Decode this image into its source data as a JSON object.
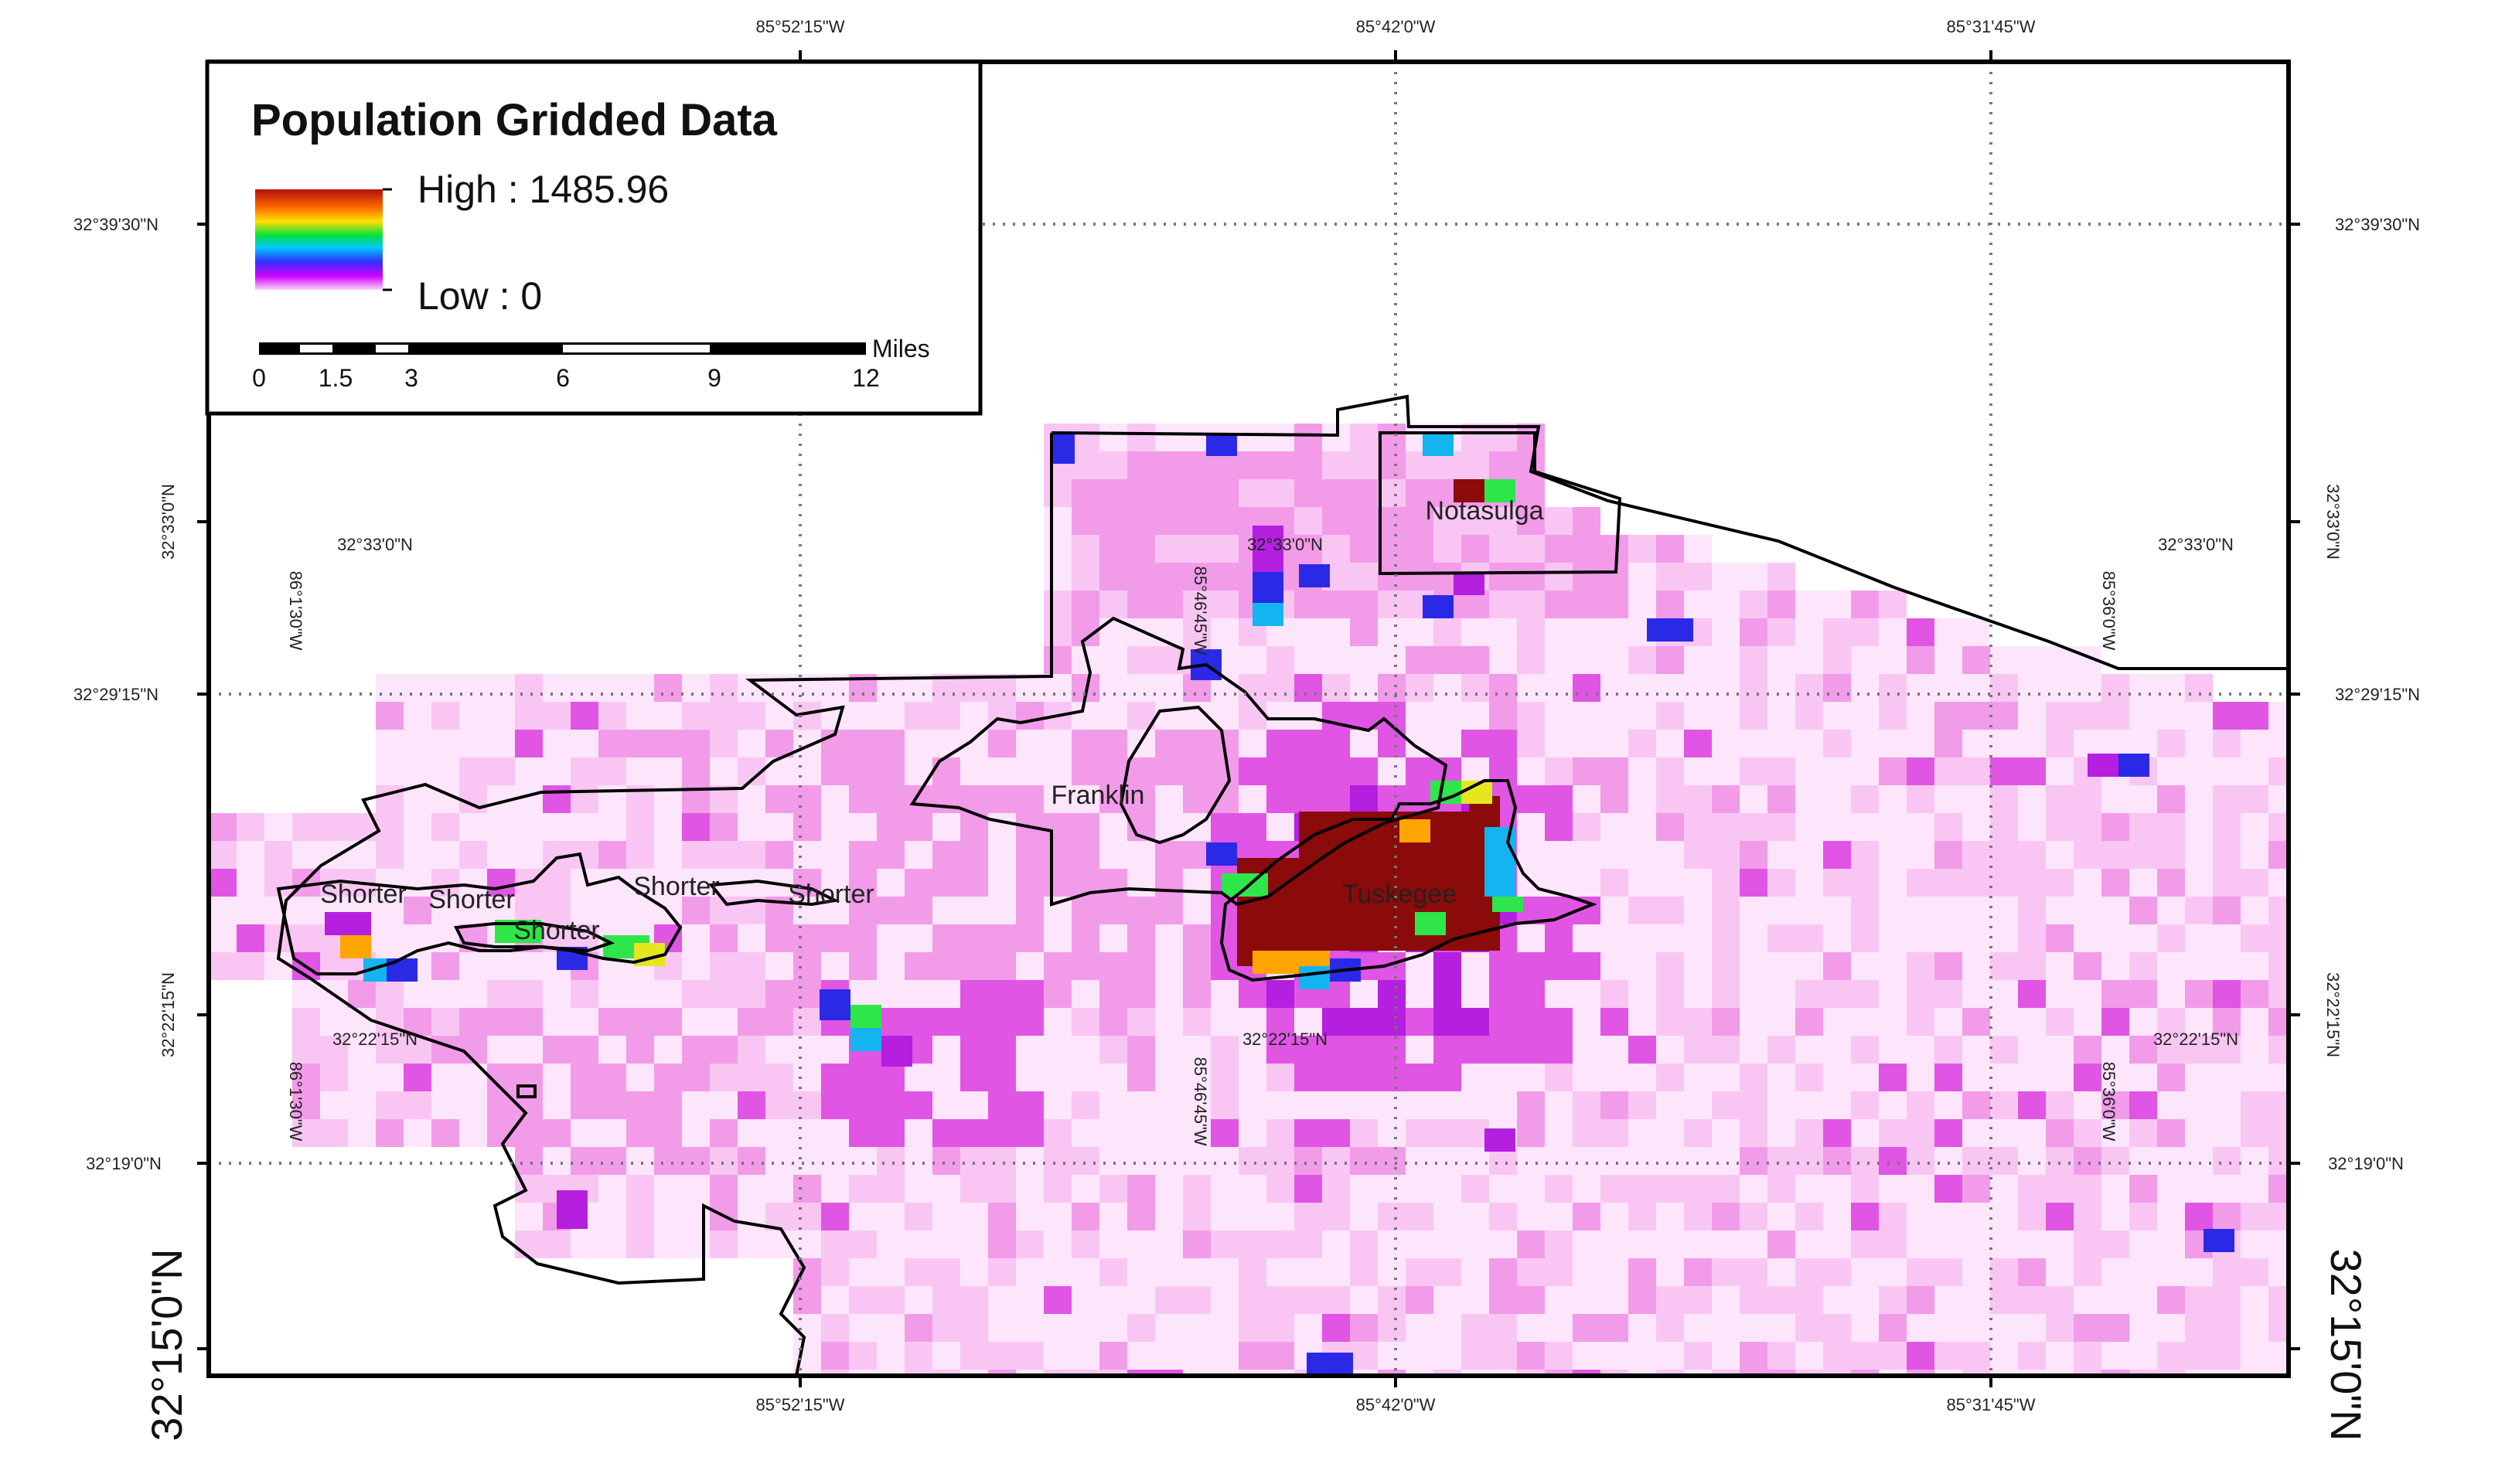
{
  "legend": {
    "title": "Population Gridded Data",
    "high_label": "High : 1485.96",
    "low_label": "Low : 0",
    "high_value": 1485.96,
    "low_value": 0,
    "ramp_colors": [
      "#b01010",
      "#ff8c00",
      "#ffe000",
      "#00e040",
      "#00c8ff",
      "#3030ff",
      "#cc00ff",
      "#ffb3f5"
    ]
  },
  "scalebar": {
    "unit": "Miles",
    "ticks": [
      "0",
      "1.5",
      "3",
      "6",
      "9",
      "12"
    ]
  },
  "graticule": {
    "top_longitudes": [
      "85°52'15\"W",
      "85°42'0\"W",
      "85°31'45\"W"
    ],
    "bottom_longitudes": [
      "85°52'15\"W",
      "85°42'0\"W",
      "85°31'45\"W"
    ],
    "left_latitudes": [
      "32°39'30\"N",
      "32°33'0\"N",
      "32°29'15\"N",
      "32°22'15\"N",
      "32°19'0\"N",
      "32°15'0\"N"
    ],
    "right_latitudes": [
      "32°39'30\"N",
      "32°33'0\"N",
      "32°29'15\"N",
      "32°22'15\"N",
      "32°19'0\"N",
      "32°15'0\"N"
    ],
    "inner_latitudes": [
      "32°33'0\"N",
      "32°33'0\"N",
      "32°33'0\"N",
      "32°22'15\"N",
      "32°22'15\"N",
      "32°22'15\"N"
    ],
    "inner_longitudes": [
      "86°1'30\"W",
      "85°46'45\"W",
      "85°36'0\"W",
      "86°1'30\"W",
      "85°46'45\"W",
      "85°36'0\"W"
    ]
  },
  "places": [
    "Notasulga",
    "Franklin",
    "Tuskegee",
    "Shorter",
    "Shorter",
    "Shorter",
    "Shorter",
    "Shorter"
  ],
  "colors": {
    "very_low": "#fde6fb",
    "low": "#f9c6f3",
    "mid_low": "#f29be9",
    "mid": "#e055e3",
    "purple": "#b41fe0",
    "blue": "#2a2ae6",
    "cyan": "#14b4f0",
    "green": "#2ee64a",
    "yellow": "#e6e61e",
    "orange": "#ffa500",
    "high": "#8b0a0a",
    "boundary": "#000000"
  }
}
